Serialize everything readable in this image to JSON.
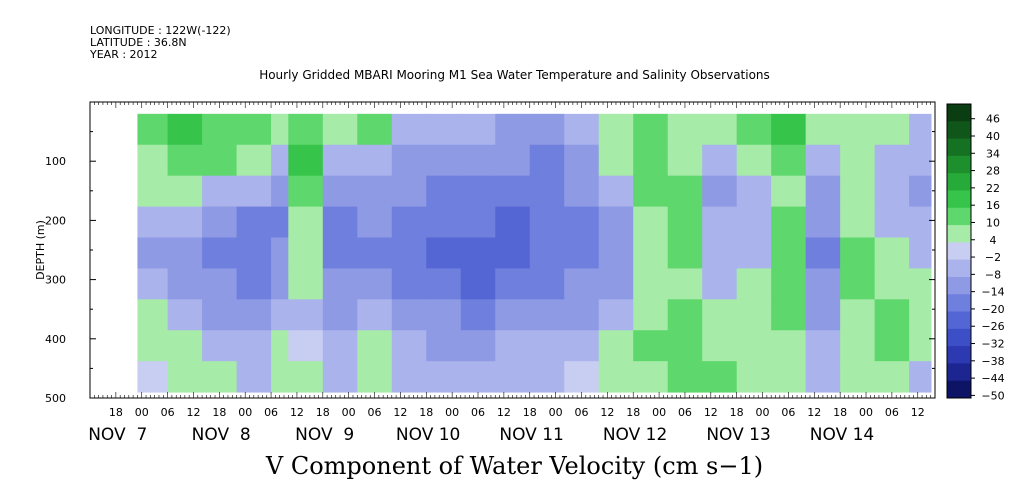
{
  "header": {
    "longitude": "LONGITUDE : 122W(-122)",
    "latitude": "LATITUDE : 36.8N",
    "year": "YEAR : 2012"
  },
  "chart_data": {
    "type": "heatmap",
    "title": "Hourly Gridded MBARI Mooring M1 Sea Water Temperature and Salinity Observations",
    "xlabel": "V Component of Water Velocity (cm s−1)",
    "ylabel": "DEPTH (m)",
    "y_axis": {
      "range": [
        0,
        500
      ],
      "direction": "down",
      "ticks": [
        100,
        200,
        300,
        400,
        500
      ]
    },
    "x_axis": {
      "hour_ticks": [
        "18",
        "00",
        "06",
        "12",
        "18",
        "00",
        "06",
        "12",
        "18",
        "00",
        "06",
        "12",
        "18",
        "00",
        "06",
        "12",
        "18",
        "00",
        "06",
        "12",
        "18",
        "00",
        "06",
        "12",
        "18",
        "00",
        "06",
        "12",
        "18",
        "00",
        "06",
        "12"
      ],
      "day_labels": [
        "NOV  7",
        "NOV  8",
        "NOV  9",
        "NOV 10",
        "NOV 11",
        "NOV 12",
        "NOV 13",
        "NOV 14"
      ]
    },
    "data_depth_range": [
      20,
      490
    ],
    "colorbar": {
      "levels": [
        "46",
        "40",
        "34",
        "28",
        "22",
        "16",
        "10",
        "4",
        "−2",
        "−8",
        "−14",
        "−20",
        "−26",
        "−32",
        "−38",
        "−44",
        "−50"
      ],
      "colors": [
        "#0b3d12",
        "#10561a",
        "#167223",
        "#1d8f2d",
        "#26aa39",
        "#36c44a",
        "#5ed76c",
        "#a6eba8",
        "#c8cdf2",
        "#aab3ec",
        "#8f9ae4",
        "#6f7fde",
        "#5466d4",
        "#3d4fc6",
        "#2c39b0",
        "#1c2590",
        "#0d1465"
      ],
      "range": [
        -50,
        52
      ]
    },
    "columns": [
      {
        "day": 6,
        "hour": 23,
        "values": [
          10,
          8,
          4,
          -6,
          -10,
          -8,
          4,
          6,
          2
        ]
      },
      {
        "day": 7,
        "hour": 6,
        "values": [
          16,
          12,
          6,
          -8,
          -12,
          -10,
          -6,
          4,
          6
        ]
      },
      {
        "day": 7,
        "hour": 14,
        "values": [
          14,
          10,
          -4,
          -14,
          -18,
          -14,
          -10,
          -6,
          4
        ]
      },
      {
        "day": 7,
        "hour": 22,
        "values": [
          12,
          8,
          -6,
          -16,
          -20,
          -16,
          -12,
          -8,
          -4
        ]
      },
      {
        "day": 8,
        "hour": 6,
        "values": [
          6,
          -4,
          -14,
          -18,
          -14,
          -10,
          -6,
          4,
          6
        ]
      },
      {
        "day": 8,
        "hour": 10,
        "values": [
          14,
          16,
          10,
          8,
          6,
          4,
          -4,
          -2,
          4
        ]
      },
      {
        "day": 8,
        "hour": 18,
        "values": [
          8,
          -6,
          -12,
          -18,
          -20,
          -14,
          -10,
          -6,
          -4
        ]
      },
      {
        "day": 9,
        "hour": 2,
        "values": [
          12,
          -4,
          -10,
          -14,
          -18,
          -14,
          -8,
          4,
          6
        ]
      },
      {
        "day": 9,
        "hour": 10,
        "values": [
          -4,
          -10,
          -14,
          -18,
          -20,
          -18,
          -12,
          -8,
          -4
        ]
      },
      {
        "day": 9,
        "hour": 18,
        "values": [
          -8,
          -14,
          -18,
          -20,
          -22,
          -20,
          -14,
          -10,
          -6
        ]
      },
      {
        "day": 10,
        "hour": 2,
        "values": [
          -6,
          -12,
          -16,
          -20,
          -24,
          -22,
          -16,
          -10,
          -6
        ]
      },
      {
        "day": 10,
        "hour": 10,
        "values": [
          -10,
          -14,
          -18,
          -22,
          -24,
          -20,
          -14,
          -8,
          -4
        ]
      },
      {
        "day": 10,
        "hour": 18,
        "values": [
          -14,
          -18,
          -16,
          -18,
          -20,
          -16,
          -12,
          -6,
          -4
        ]
      },
      {
        "day": 11,
        "hour": 2,
        "values": [
          -8,
          -12,
          -14,
          -16,
          -18,
          -14,
          -10,
          -6,
          -2
        ]
      },
      {
        "day": 11,
        "hour": 10,
        "values": [
          6,
          4,
          -6,
          -10,
          -12,
          -10,
          -6,
          4,
          6
        ]
      },
      {
        "day": 11,
        "hour": 18,
        "values": [
          10,
          14,
          10,
          8,
          6,
          4,
          8,
          10,
          8
        ]
      },
      {
        "day": 12,
        "hour": 2,
        "values": [
          8,
          6,
          12,
          14,
          10,
          6,
          10,
          14,
          12
        ]
      },
      {
        "day": 12,
        "hour": 10,
        "values": [
          4,
          -6,
          -10,
          -8,
          -6,
          -4,
          4,
          8,
          10
        ]
      },
      {
        "day": 12,
        "hour": 18,
        "values": [
          10,
          8,
          -4,
          -8,
          -6,
          4,
          6,
          4,
          6
        ]
      },
      {
        "day": 13,
        "hour": 2,
        "values": [
          16,
          12,
          8,
          10,
          12,
          14,
          10,
          8,
          6
        ]
      },
      {
        "day": 13,
        "hour": 10,
        "values": [
          8,
          -4,
          -10,
          -14,
          -16,
          -14,
          -10,
          -6,
          -4
        ]
      },
      {
        "day": 13,
        "hour": 18,
        "values": [
          6,
          8,
          4,
          8,
          10,
          12,
          8,
          6,
          4
        ]
      },
      {
        "day": 14,
        "hour": 2,
        "values": [
          4,
          -6,
          -8,
          -4,
          6,
          8,
          10,
          12,
          8
        ]
      },
      {
        "day": 14,
        "hour": 10,
        "values": [
          -4,
          -8,
          -10,
          -6,
          -4,
          4,
          6,
          4,
          -4
        ]
      }
    ]
  }
}
